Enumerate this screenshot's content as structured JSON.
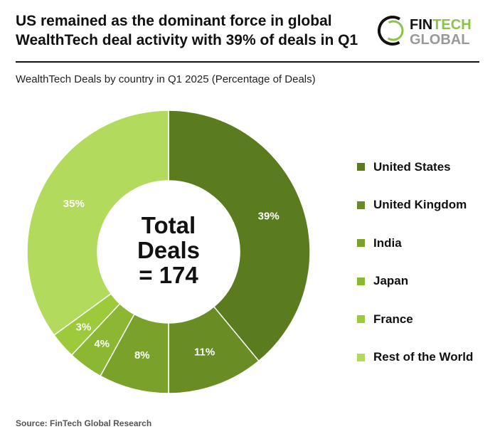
{
  "header": {
    "title": "US remained as the dominant force in global WealthTech deal activity with 39% of deals in Q1",
    "logo": {
      "line1a": "FIN",
      "line1b": "TECH",
      "line2": "GLOBAL"
    }
  },
  "footer": {
    "source": "Source: FinTech Global Research"
  },
  "chart_data": {
    "type": "pie",
    "donut": true,
    "title": "WealthTech Deals by country in Q1 2025 (Percentage of Deals)",
    "center_label": [
      "Total",
      "Deals",
      "= 174"
    ],
    "categories": [
      "United States",
      "United Kingdom",
      "India",
      "Japan",
      "France",
      "Rest of the World"
    ],
    "values": [
      39,
      11,
      8,
      4,
      3,
      35
    ],
    "labels": [
      "39%",
      "11%",
      "8%",
      "4%",
      "3%",
      "35%"
    ],
    "colors": [
      "#5b7b1f",
      "#6a8c24",
      "#7aa22a",
      "#8bb732",
      "#9dca3a",
      "#b2db5e"
    ],
    "legend_position": "right"
  }
}
